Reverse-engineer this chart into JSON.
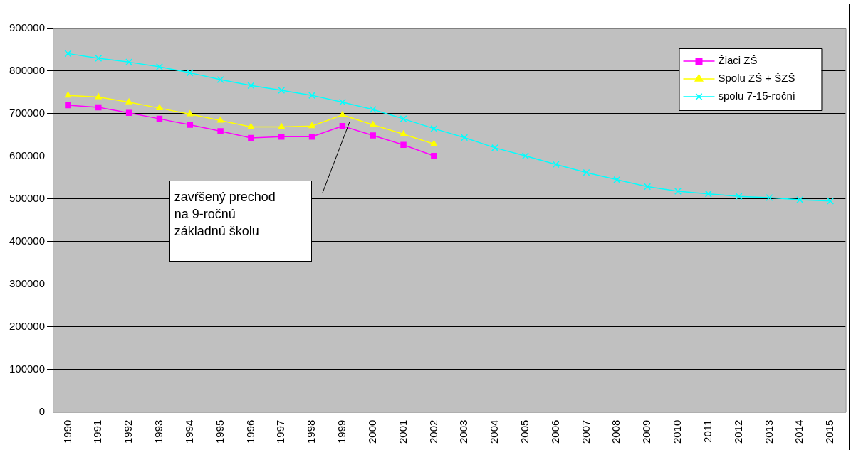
{
  "chart_data": {
    "type": "line",
    "categories": [
      "1990",
      "1991",
      "1992",
      "1993",
      "1994",
      "1995",
      "1996",
      "1997",
      "1998",
      "1999",
      "2000",
      "2001",
      "2002",
      "2003",
      "2004",
      "2005",
      "2006",
      "2007",
      "2008",
      "2009",
      "2010",
      "2011",
      "2012",
      "2013",
      "2014",
      "2015"
    ],
    "series": [
      {
        "name": "Žiaci ZŠ",
        "color": "#ff00ff",
        "marker": "square",
        "values": [
          720000,
          715000,
          702000,
          688000,
          674000,
          659000,
          643000,
          646000,
          646000,
          671000,
          649000,
          627000,
          601000,
          null,
          null,
          null,
          null,
          null,
          null,
          null,
          null,
          null,
          null,
          null,
          null,
          null
        ]
      },
      {
        "name": "Spolu ZŠ + ŠZŠ",
        "color": "#ffff00",
        "marker": "triangle",
        "values": [
          743000,
          739000,
          727000,
          713000,
          699000,
          684000,
          669000,
          669000,
          671000,
          697000,
          674000,
          652000,
          629000,
          null,
          null,
          null,
          null,
          null,
          null,
          null,
          null,
          null,
          null,
          null,
          null,
          null
        ]
      },
      {
        "name": "spolu 7-15-roční",
        "color": "#00ffff",
        "marker": "cross",
        "values": [
          841000,
          830000,
          821000,
          810000,
          796000,
          780000,
          766000,
          755000,
          743000,
          727000,
          710000,
          688000,
          665000,
          644000,
          620000,
          601000,
          581000,
          562000,
          545000,
          529000,
          518000,
          512000,
          506000,
          503000,
          498000,
          495000
        ]
      }
    ],
    "ylim": [
      0,
      900000
    ],
    "yticks": [
      0,
      100000,
      200000,
      300000,
      400000,
      500000,
      600000,
      700000,
      800000,
      900000
    ],
    "grid": "y",
    "legend": "top right",
    "annotations": [
      "zavŕšený prechod na 9-ročnú základnú školu"
    ]
  }
}
